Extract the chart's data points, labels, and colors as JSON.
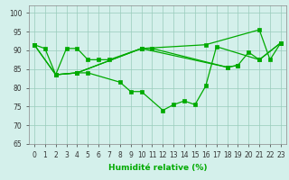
{
  "xlabel": "Humidité relative (%)",
  "bg_color": "#d4f0eb",
  "grid_color": "#99ccbb",
  "line_color": "#00aa00",
  "xlim": [
    -0.5,
    23.5
  ],
  "ylim": [
    65,
    102
  ],
  "yticks": [
    65,
    70,
    75,
    80,
    85,
    90,
    95,
    100
  ],
  "xticks": [
    0,
    1,
    2,
    3,
    4,
    5,
    6,
    7,
    8,
    9,
    10,
    11,
    12,
    13,
    14,
    15,
    16,
    17,
    18,
    19,
    20,
    21,
    22,
    23
  ],
  "line1": {
    "x": [
      0,
      1,
      2,
      3,
      4,
      5,
      6,
      7,
      10,
      16,
      21,
      22,
      23
    ],
    "y": [
      91.5,
      90.5,
      83.5,
      90.5,
      90.5,
      87.5,
      87.5,
      87.5,
      90.5,
      91.5,
      95.5,
      87.5,
      92
    ]
  },
  "line2": {
    "x": [
      0,
      2,
      4,
      5,
      8,
      9,
      10,
      12,
      13,
      14,
      15,
      16,
      17,
      21,
      23
    ],
    "y": [
      91.5,
      83.5,
      84,
      84,
      81.5,
      79,
      79,
      74,
      75.5,
      76.5,
      75.5,
      80.5,
      91,
      87.5,
      92
    ]
  },
  "line3": {
    "x": [
      0,
      2,
      4,
      10,
      11,
      18,
      19,
      20,
      21,
      23
    ],
    "y": [
      91.5,
      83.5,
      84,
      90.5,
      90.5,
      85.5,
      86,
      89.5,
      87.5,
      92
    ]
  },
  "line4": {
    "x": [
      2,
      4,
      10,
      18,
      19
    ],
    "y": [
      83.5,
      84,
      90.5,
      85.5,
      86
    ]
  }
}
